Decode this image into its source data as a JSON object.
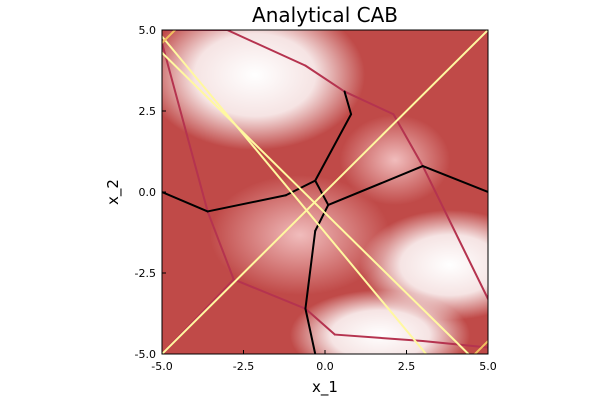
{
  "chart_data": {
    "type": "heatmap",
    "title": "Analytical CAB",
    "xlabel": "x_1",
    "ylabel": "x_2",
    "xlim": [
      -5,
      5
    ],
    "ylim": [
      -5,
      5
    ],
    "xticks": [
      -5,
      -2.5,
      0,
      2.5,
      5
    ],
    "yticks": [
      -5,
      -2.5,
      0,
      2.5,
      5
    ],
    "xtick_labels": [
      "-5.0",
      "-2.5",
      "0.0",
      "2.5",
      "5.0"
    ],
    "ytick_labels": [
      "-5.0",
      "-2.5",
      "0.0",
      "2.5",
      "5.0"
    ],
    "grid": false,
    "legend": "none",
    "colors": {
      "background_low": "#ffffff",
      "background_high": "#c04a48",
      "crimson_lines": "#b5334f",
      "black_lines": "#000000",
      "yellow_lines": "#fff8a0",
      "orange_lines": "#f2c060"
    },
    "series": [
      {
        "color": "crimson_lines",
        "segments": [
          [
            [
              -5.0,
              4.6
            ],
            [
              -3.6,
              -0.6
            ]
          ],
          [
            [
              -3.6,
              -0.6
            ],
            [
              -2.8,
              -2.7
            ]
          ],
          [
            [
              -2.8,
              -2.7
            ],
            [
              -5.0,
              -5.0
            ]
          ],
          [
            [
              -4.9,
              5.0
            ],
            [
              -3.0,
              5.0
            ]
          ],
          [
            [
              -3.0,
              5.0
            ],
            [
              -0.6,
              3.9
            ]
          ],
          [
            [
              -0.6,
              3.9
            ],
            [
              0.6,
              3.1
            ]
          ],
          [
            [
              0.6,
              3.1
            ],
            [
              2.1,
              2.4
            ]
          ],
          [
            [
              2.1,
              2.4
            ],
            [
              3.0,
              0.8
            ]
          ],
          [
            [
              3.0,
              0.8
            ],
            [
              5.0,
              -3.3
            ]
          ],
          [
            [
              -2.8,
              -2.7
            ],
            [
              -0.6,
              -3.6
            ]
          ],
          [
            [
              -0.6,
              -3.6
            ],
            [
              0.3,
              -4.4
            ]
          ],
          [
            [
              0.3,
              -4.4
            ],
            [
              3.0,
              -4.6
            ]
          ],
          [
            [
              3.0,
              -4.6
            ],
            [
              5.0,
              -4.8
            ]
          ]
        ]
      },
      {
        "color": "black_lines",
        "segments": [
          [
            [
              -5.0,
              0.0
            ],
            [
              -3.6,
              -0.6
            ]
          ],
          [
            [
              -3.6,
              -0.6
            ],
            [
              -1.2,
              -0.1
            ]
          ],
          [
            [
              -1.2,
              -0.1
            ],
            [
              -0.3,
              0.35
            ]
          ],
          [
            [
              -0.3,
              0.35
            ],
            [
              0.8,
              2.4
            ]
          ],
          [
            [
              0.8,
              2.4
            ],
            [
              0.6,
              3.1
            ]
          ],
          [
            [
              0.1,
              -0.4
            ],
            [
              3.0,
              0.8
            ]
          ],
          [
            [
              3.0,
              0.8
            ],
            [
              5.0,
              0.0
            ]
          ],
          [
            [
              -0.3,
              0.35
            ],
            [
              0.1,
              -0.4
            ]
          ],
          [
            [
              0.1,
              -0.4
            ],
            [
              -0.3,
              -1.2
            ]
          ],
          [
            [
              -0.3,
              -1.2
            ],
            [
              -0.6,
              -3.6
            ]
          ],
          [
            [
              -0.6,
              -3.6
            ],
            [
              -0.3,
              -5.0
            ]
          ]
        ]
      },
      {
        "color": "yellow_lines",
        "segments": [
          [
            [
              -5.0,
              4.3
            ],
            [
              4.4,
              -5.0
            ]
          ],
          [
            [
              -5.0,
              4.8
            ],
            [
              3.1,
              -5.0
            ]
          ],
          [
            [
              -5.0,
              -5.0
            ],
            [
              5.0,
              5.0
            ]
          ]
        ]
      },
      {
        "color": "orange_lines",
        "segments": [
          [
            [
              -5.0,
              4.6
            ],
            [
              -4.6,
              5.0
            ]
          ],
          [
            [
              4.6,
              -5.0
            ],
            [
              5.0,
              -4.6
            ]
          ]
        ]
      }
    ]
  }
}
